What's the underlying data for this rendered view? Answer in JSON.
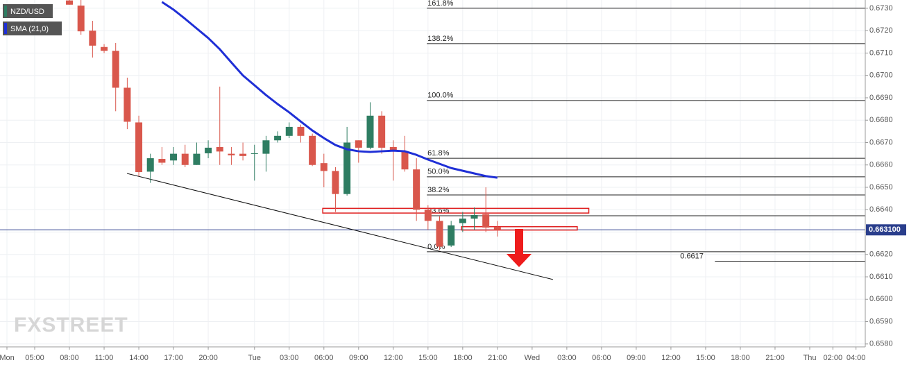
{
  "chart_data": {
    "type": "candlestick",
    "legend": [
      "NZD/USD",
      "SMA (21,0)"
    ],
    "watermark": "FXSTREET",
    "x": [
      8,
      9,
      10,
      11,
      12,
      13,
      14,
      15,
      16,
      17,
      18,
      19,
      20,
      21,
      22,
      23,
      24,
      25,
      26,
      27,
      28,
      29,
      30,
      31,
      32,
      33,
      34,
      35,
      36,
      37,
      38,
      39,
      40,
      41,
      42,
      43,
      44,
      45
    ],
    "open": [
      0.67335,
      0.67312,
      0.672,
      0.67127,
      0.6711,
      0.66945,
      0.6679,
      0.6657,
      0.66627,
      0.6662,
      0.6665,
      0.666,
      0.66652,
      0.6668,
      0.6665,
      0.6665,
      0.6665,
      0.6665,
      0.6671,
      0.6673,
      0.6677,
      0.6673,
      0.66608,
      0.66573,
      0.6647,
      0.6671,
      0.66677,
      0.6682,
      0.6668,
      0.6666,
      0.6658,
      0.664,
      0.6635,
      0.6624,
      0.6634,
      0.6636,
      0.6638,
      0.66323
    ],
    "high": [
      0.6736,
      0.6734,
      0.67244,
      0.6714,
      0.67145,
      0.6699,
      0.6682,
      0.6665,
      0.6668,
      0.6668,
      0.6669,
      0.667,
      0.6671,
      0.6695,
      0.6668,
      0.667,
      0.6669,
      0.6673,
      0.6675,
      0.6679,
      0.6678,
      0.6674,
      0.6665,
      0.6659,
      0.6677,
      0.6671,
      0.6688,
      0.6684,
      0.6671,
      0.6673,
      0.6663,
      0.6642,
      0.6637,
      0.6635,
      0.6639,
      0.6641,
      0.665,
      0.6635
    ],
    "low": [
      0.67316,
      0.67182,
      0.6708,
      0.671,
      0.6684,
      0.6676,
      0.6655,
      0.6652,
      0.666,
      0.666,
      0.6659,
      0.666,
      0.6663,
      0.666,
      0.666,
      0.6662,
      0.6653,
      0.6657,
      0.667,
      0.6672,
      0.667,
      0.66595,
      0.665,
      0.6639,
      0.66463,
      0.6661,
      0.6667,
      0.6665,
      0.6653,
      0.6657,
      0.6635,
      0.6631,
      0.6622,
      0.66233,
      0.663,
      0.6631,
      0.663,
      0.6628
    ],
    "close": [
      0.67316,
      0.67197,
      0.67133,
      0.6711,
      0.66945,
      0.66793,
      0.66568,
      0.6663,
      0.6661,
      0.6665,
      0.666,
      0.6665,
      0.66677,
      0.6666,
      0.66643,
      0.6664,
      0.66652,
      0.6671,
      0.6673,
      0.6677,
      0.6673,
      0.666,
      0.66573,
      0.6647,
      0.667,
      0.66677,
      0.6682,
      0.66677,
      0.6666,
      0.6658,
      0.664,
      0.6635,
      0.66235,
      0.6633,
      0.6636,
      0.66376,
      0.6632,
      0.6631
    ],
    "up_color": "#2e7d62",
    "down_color": "#d9574c",
    "sma": {
      "name": "SMA (21,0)",
      "color": "#1f2fd6",
      "x": [
        16,
        17,
        18,
        19,
        20,
        21,
        22,
        23,
        24,
        25,
        26,
        27,
        28,
        29,
        30,
        31,
        32,
        33,
        34,
        35,
        36,
        37,
        38,
        39,
        40,
        41,
        42,
        43,
        44,
        45
      ],
      "values": [
        0.67328,
        0.67294,
        0.67253,
        0.6721,
        0.67167,
        0.67117,
        0.67058,
        0.67,
        0.66956,
        0.66912,
        0.66872,
        0.66835,
        0.66794,
        0.66754,
        0.6672,
        0.66689,
        0.6667,
        0.66661,
        0.66658,
        0.66661,
        0.66664,
        0.66661,
        0.66645,
        0.66624,
        0.66605,
        0.66586,
        0.66574,
        0.66562,
        0.6655,
        0.66543
      ]
    },
    "fib": {
      "x_start": 38.9,
      "levels": [
        0.673,
        0.67142,
        0.66888,
        0.6663,
        0.66547,
        0.66466,
        0.66373,
        0.66212
      ],
      "labels": [
        "161.8%",
        "138.2%",
        "100.0%",
        "61.8%",
        "50.0%",
        "38.2%",
        "23.6%",
        "0.0%"
      ]
    },
    "level": {
      "value": 0.6617,
      "label": "0.6617",
      "x_start": 63.8
    },
    "current": {
      "value": 0.6631,
      "label": "0.663100",
      "color": "#2a3e8c"
    },
    "trendline": {
      "x": [
        12.98,
        49.8
      ],
      "values": [
        0.66562,
        0.66088
      ]
    },
    "zones": [
      {
        "x": [
          29.9,
          52.9
        ],
        "values": [
          0.66406,
          0.66385
        ]
      },
      {
        "x": [
          41.9,
          51.9
        ],
        "values": [
          0.66324,
          0.66309
        ]
      }
    ],
    "xlim": [
      2,
      76.8
    ],
    "ylim": [
      0.65787,
      0.67337
    ],
    "xticks": [
      {
        "value": 2.6,
        "label": "Mon"
      },
      {
        "value": 5,
        "label": "05:00"
      },
      {
        "value": 8,
        "label": "08:00"
      },
      {
        "value": 11,
        "label": "11:00"
      },
      {
        "value": 14,
        "label": "14:00"
      },
      {
        "value": 17,
        "label": "17:00"
      },
      {
        "value": 20,
        "label": "20:00"
      },
      {
        "value": 24,
        "label": "Tue"
      },
      {
        "value": 27,
        "label": "03:00"
      },
      {
        "value": 30,
        "label": "06:00"
      },
      {
        "value": 33,
        "label": "09:00"
      },
      {
        "value": 36,
        "label": "12:00"
      },
      {
        "value": 39,
        "label": "15:00"
      },
      {
        "value": 42,
        "label": "18:00"
      },
      {
        "value": 45,
        "label": "21:00"
      },
      {
        "value": 48,
        "label": "Wed"
      },
      {
        "value": 51,
        "label": "03:00"
      },
      {
        "value": 54,
        "label": "06:00"
      },
      {
        "value": 57,
        "label": "09:00"
      },
      {
        "value": 60,
        "label": "12:00"
      },
      {
        "value": 63,
        "label": "15:00"
      },
      {
        "value": 66,
        "label": "18:00"
      },
      {
        "value": 69,
        "label": "21:00"
      },
      {
        "value": 72,
        "label": "Thu"
      },
      {
        "value": 74,
        "label": "02:00"
      },
      {
        "value": 76,
        "label": "04:00"
      }
    ],
    "yticks": [
      {
        "value": 0.658,
        "label": "0.6580"
      },
      {
        "value": 0.659,
        "label": "0.6590"
      },
      {
        "value": 0.66,
        "label": "0.6600"
      },
      {
        "value": 0.661,
        "label": "0.6610"
      },
      {
        "value": 0.662,
        "label": "0.6620"
      },
      {
        "value": 0.663,
        "label": "0.6630"
      },
      {
        "value": 0.664,
        "label": "0.6640"
      },
      {
        "value": 0.665,
        "label": "0.6650"
      },
      {
        "value": 0.666,
        "label": "0.6660"
      },
      {
        "value": 0.667,
        "label": "0.6670"
      },
      {
        "value": 0.668,
        "label": "0.6680"
      },
      {
        "value": 0.669,
        "label": "0.6690"
      },
      {
        "value": 0.67,
        "label": "0.6700"
      },
      {
        "value": 0.671,
        "label": "0.6710"
      },
      {
        "value": 0.672,
        "label": "0.6720"
      },
      {
        "value": 0.673,
        "label": "0.6730"
      }
    ],
    "grid": true
  }
}
